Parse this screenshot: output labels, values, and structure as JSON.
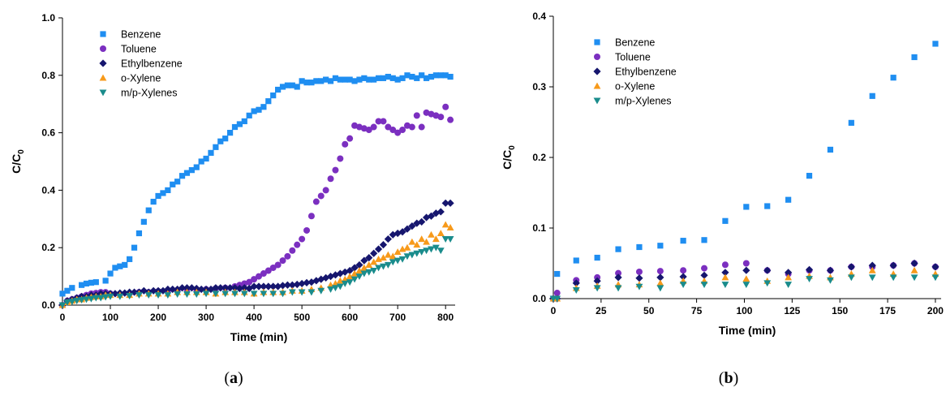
{
  "chart_data": [
    {
      "type": "scatter",
      "panel_label": "(a)",
      "xlabel": "Time (min)",
      "ylabel": "C/C",
      "ylabel_sub": "0",
      "xlim": [
        0,
        820
      ],
      "ylim": [
        0,
        1.0
      ],
      "xticks": [
        0,
        100,
        200,
        300,
        400,
        500,
        600,
        700,
        800
      ],
      "yticks": [
        0.0,
        0.2,
        0.4,
        0.6,
        0.8,
        1.0
      ],
      "yticks_labels": [
        "0.0",
        "0.2",
        "0.4",
        "0.6",
        "0.8",
        "1.0"
      ],
      "grid": false,
      "legend_position": "top-left",
      "series": [
        {
          "name": "Benzene",
          "color": "#1f8ef1",
          "marker": "square",
          "x": [
            0,
            10,
            20,
            40,
            50,
            60,
            70,
            90,
            100,
            110,
            120,
            130,
            140,
            150,
            160,
            170,
            180,
            190,
            200,
            210,
            220,
            230,
            240,
            250,
            260,
            270,
            280,
            290,
            300,
            310,
            320,
            330,
            340,
            350,
            360,
            370,
            380,
            390,
            400,
            410,
            420,
            430,
            440,
            450,
            460,
            470,
            480,
            490,
            500,
            510,
            520,
            530,
            540,
            550,
            560,
            570,
            580,
            590,
            600,
            610,
            620,
            630,
            640,
            650,
            660,
            670,
            680,
            690,
            700,
            710,
            720,
            730,
            740,
            750,
            760,
            770,
            780,
            790,
            800,
            810
          ],
          "y": [
            0.04,
            0.05,
            0.06,
            0.07,
            0.075,
            0.078,
            0.08,
            0.085,
            0.11,
            0.13,
            0.135,
            0.14,
            0.16,
            0.2,
            0.25,
            0.29,
            0.33,
            0.36,
            0.38,
            0.39,
            0.4,
            0.42,
            0.43,
            0.45,
            0.46,
            0.47,
            0.48,
            0.5,
            0.51,
            0.53,
            0.55,
            0.57,
            0.58,
            0.6,
            0.62,
            0.63,
            0.64,
            0.66,
            0.675,
            0.68,
            0.69,
            0.71,
            0.73,
            0.75,
            0.76,
            0.765,
            0.765,
            0.76,
            0.78,
            0.775,
            0.775,
            0.78,
            0.78,
            0.785,
            0.78,
            0.79,
            0.785,
            0.785,
            0.785,
            0.78,
            0.785,
            0.79,
            0.785,
            0.785,
            0.79,
            0.79,
            0.795,
            0.79,
            0.785,
            0.79,
            0.8,
            0.795,
            0.79,
            0.8,
            0.79,
            0.795,
            0.8,
            0.8,
            0.8,
            0.795
          ]
        },
        {
          "name": "Toluene",
          "color": "#7b2fc0",
          "marker": "circle",
          "x": [
            0,
            10,
            20,
            30,
            40,
            50,
            60,
            70,
            80,
            90,
            100,
            120,
            140,
            160,
            180,
            200,
            220,
            240,
            260,
            280,
            300,
            320,
            340,
            360,
            370,
            380,
            390,
            400,
            410,
            420,
            430,
            440,
            450,
            460,
            470,
            480,
            490,
            500,
            510,
            520,
            530,
            540,
            550,
            560,
            570,
            580,
            590,
            600,
            610,
            620,
            630,
            640,
            650,
            660,
            670,
            680,
            690,
            700,
            710,
            720,
            730,
            740,
            750,
            760,
            770,
            780,
            790,
            800,
            810
          ],
          "y": [
            0.0,
            0.015,
            0.02,
            0.025,
            0.03,
            0.035,
            0.04,
            0.042,
            0.045,
            0.045,
            0.04,
            0.038,
            0.04,
            0.045,
            0.045,
            0.048,
            0.05,
            0.052,
            0.055,
            0.055,
            0.055,
            0.058,
            0.06,
            0.065,
            0.07,
            0.075,
            0.08,
            0.09,
            0.1,
            0.11,
            0.12,
            0.13,
            0.14,
            0.155,
            0.17,
            0.19,
            0.21,
            0.23,
            0.26,
            0.31,
            0.36,
            0.38,
            0.4,
            0.44,
            0.47,
            0.51,
            0.56,
            0.58,
            0.625,
            0.62,
            0.615,
            0.61,
            0.62,
            0.64,
            0.64,
            0.62,
            0.61,
            0.6,
            0.61,
            0.625,
            0.62,
            0.66,
            0.62,
            0.67,
            0.665,
            0.66,
            0.655,
            0.69,
            0.645
          ]
        },
        {
          "name": "Ethylbenzene",
          "color": "#16166e",
          "marker": "diamond",
          "x": [
            0,
            10,
            20,
            30,
            40,
            50,
            60,
            70,
            80,
            90,
            100,
            110,
            120,
            130,
            140,
            150,
            160,
            170,
            180,
            190,
            200,
            210,
            220,
            230,
            240,
            250,
            260,
            270,
            280,
            290,
            300,
            310,
            320,
            330,
            340,
            350,
            360,
            370,
            380,
            390,
            400,
            410,
            420,
            430,
            440,
            450,
            460,
            470,
            480,
            490,
            500,
            510,
            520,
            530,
            540,
            550,
            560,
            570,
            580,
            590,
            600,
            610,
            620,
            630,
            640,
            650,
            660,
            670,
            680,
            690,
            700,
            710,
            720,
            730,
            740,
            750,
            760,
            770,
            780,
            790,
            800,
            810
          ],
          "y": [
            0.0,
            0.015,
            0.02,
            0.025,
            0.03,
            0.03,
            0.035,
            0.035,
            0.04,
            0.04,
            0.04,
            0.04,
            0.042,
            0.042,
            0.045,
            0.045,
            0.045,
            0.05,
            0.045,
            0.05,
            0.05,
            0.05,
            0.055,
            0.055,
            0.055,
            0.06,
            0.06,
            0.06,
            0.058,
            0.055,
            0.055,
            0.055,
            0.06,
            0.06,
            0.06,
            0.06,
            0.06,
            0.058,
            0.06,
            0.058,
            0.065,
            0.065,
            0.065,
            0.065,
            0.065,
            0.065,
            0.068,
            0.07,
            0.07,
            0.072,
            0.075,
            0.078,
            0.08,
            0.085,
            0.09,
            0.095,
            0.1,
            0.105,
            0.11,
            0.115,
            0.12,
            0.13,
            0.14,
            0.155,
            0.165,
            0.18,
            0.195,
            0.21,
            0.23,
            0.245,
            0.25,
            0.255,
            0.265,
            0.275,
            0.285,
            0.29,
            0.305,
            0.31,
            0.32,
            0.325,
            0.355,
            0.355
          ]
        },
        {
          "name": "o-Xylene",
          "color": "#f79a1b",
          "marker": "triangle-up",
          "x": [
            0,
            10,
            20,
            30,
            40,
            50,
            60,
            70,
            80,
            90,
            100,
            120,
            140,
            160,
            180,
            200,
            220,
            240,
            260,
            280,
            300,
            320,
            340,
            360,
            380,
            400,
            420,
            440,
            460,
            480,
            500,
            520,
            540,
            560,
            570,
            580,
            590,
            600,
            610,
            620,
            630,
            640,
            650,
            660,
            670,
            680,
            690,
            700,
            710,
            720,
            730,
            740,
            750,
            760,
            770,
            780,
            790,
            800,
            810
          ],
          "y": [
            0.0,
            0.01,
            0.015,
            0.02,
            0.02,
            0.025,
            0.028,
            0.03,
            0.03,
            0.035,
            0.035,
            0.035,
            0.035,
            0.04,
            0.04,
            0.04,
            0.04,
            0.045,
            0.045,
            0.045,
            0.045,
            0.04,
            0.045,
            0.045,
            0.045,
            0.04,
            0.045,
            0.045,
            0.045,
            0.05,
            0.05,
            0.055,
            0.06,
            0.07,
            0.075,
            0.085,
            0.09,
            0.1,
            0.11,
            0.12,
            0.13,
            0.14,
            0.15,
            0.16,
            0.165,
            0.175,
            0.17,
            0.185,
            0.195,
            0.2,
            0.22,
            0.21,
            0.23,
            0.22,
            0.245,
            0.23,
            0.25,
            0.28,
            0.27
          ]
        },
        {
          "name": "m/p-Xylenes",
          "color": "#1a8c8c",
          "marker": "triangle-down",
          "x": [
            0,
            10,
            20,
            30,
            40,
            50,
            60,
            70,
            80,
            90,
            100,
            120,
            140,
            160,
            180,
            200,
            220,
            240,
            260,
            280,
            300,
            320,
            340,
            360,
            380,
            400,
            420,
            440,
            460,
            480,
            500,
            520,
            540,
            560,
            570,
            580,
            590,
            600,
            610,
            620,
            630,
            640,
            650,
            660,
            670,
            680,
            690,
            700,
            710,
            720,
            730,
            740,
            750,
            760,
            770,
            780,
            790,
            800,
            810
          ],
          "y": [
            0.0,
            0.01,
            0.012,
            0.015,
            0.018,
            0.02,
            0.022,
            0.025,
            0.025,
            0.028,
            0.03,
            0.03,
            0.032,
            0.035,
            0.035,
            0.035,
            0.035,
            0.038,
            0.038,
            0.038,
            0.04,
            0.04,
            0.04,
            0.04,
            0.04,
            0.04,
            0.04,
            0.04,
            0.04,
            0.045,
            0.045,
            0.045,
            0.05,
            0.055,
            0.06,
            0.065,
            0.075,
            0.08,
            0.09,
            0.1,
            0.11,
            0.115,
            0.12,
            0.13,
            0.135,
            0.14,
            0.15,
            0.155,
            0.16,
            0.17,
            0.175,
            0.18,
            0.185,
            0.19,
            0.195,
            0.2,
            0.19,
            0.23,
            0.23
          ]
        }
      ]
    },
    {
      "type": "scatter",
      "panel_label": "(b)",
      "xlabel": "Time (min)",
      "ylabel": "C/C",
      "ylabel_sub": "0",
      "xlim": [
        0,
        203
      ],
      "ylim": [
        0,
        0.4
      ],
      "xticks": [
        0,
        25,
        50,
        75,
        100,
        125,
        150,
        175,
        200
      ],
      "yticks": [
        0.0,
        0.1,
        0.2,
        0.3,
        0.4
      ],
      "yticks_labels": [
        "0.0",
        "0.1",
        "0.2",
        "0.3",
        "0.4"
      ],
      "grid": false,
      "legend_position": "top-left",
      "series": [
        {
          "name": "Benzene",
          "color": "#1f8ef1",
          "marker": "square",
          "x": [
            0,
            2,
            12,
            23,
            34,
            45,
            56,
            68,
            79,
            90,
            101,
            112,
            123,
            134,
            145,
            156,
            167,
            178,
            189,
            200
          ],
          "y": [
            0.0,
            0.035,
            0.054,
            0.058,
            0.07,
            0.073,
            0.075,
            0.082,
            0.083,
            0.11,
            0.13,
            0.131,
            0.14,
            0.174,
            0.211,
            0.249,
            0.287,
            0.313,
            0.342,
            0.361
          ]
        },
        {
          "name": "Toluene",
          "color": "#7b2fc0",
          "marker": "circle",
          "x": [
            0,
            2,
            12,
            23,
            34,
            45,
            56,
            68,
            79,
            90,
            101,
            112,
            123,
            134,
            145,
            156,
            167,
            178,
            189,
            200
          ],
          "y": [
            0.0,
            0.008,
            0.026,
            0.03,
            0.036,
            0.038,
            0.039,
            0.04,
            0.043,
            0.048,
            0.05,
            0.04,
            0.035,
            0.04,
            0.04,
            0.045,
            0.045,
            0.047,
            0.05,
            0.045
          ]
        },
        {
          "name": "Ethylbenzene",
          "color": "#16166e",
          "marker": "diamond",
          "x": [
            0,
            2,
            12,
            23,
            34,
            45,
            56,
            68,
            79,
            90,
            101,
            112,
            123,
            134,
            145,
            156,
            167,
            178,
            189,
            200
          ],
          "y": [
            0.0,
            0.0,
            0.022,
            0.025,
            0.03,
            0.029,
            0.03,
            0.031,
            0.033,
            0.037,
            0.04,
            0.04,
            0.037,
            0.041,
            0.04,
            0.045,
            0.047,
            0.047,
            0.05,
            0.045
          ]
        },
        {
          "name": "o-Xylene",
          "color": "#f79a1b",
          "marker": "triangle-up",
          "x": [
            0,
            2,
            12,
            23,
            34,
            45,
            56,
            68,
            79,
            90,
            101,
            112,
            123,
            134,
            145,
            156,
            167,
            178,
            189,
            200
          ],
          "y": [
            0.0,
            0.0,
            0.015,
            0.018,
            0.02,
            0.02,
            0.022,
            0.025,
            0.025,
            0.03,
            0.028,
            0.025,
            0.03,
            0.032,
            0.03,
            0.035,
            0.04,
            0.035,
            0.04,
            0.035
          ]
        },
        {
          "name": "m/p-Xylenes",
          "color": "#1a8c8c",
          "marker": "triangle-down",
          "x": [
            0,
            2,
            12,
            23,
            34,
            45,
            56,
            68,
            79,
            90,
            101,
            112,
            123,
            134,
            145,
            156,
            167,
            178,
            189,
            200
          ],
          "y": [
            0.0,
            0.0,
            0.012,
            0.015,
            0.015,
            0.017,
            0.015,
            0.02,
            0.02,
            0.02,
            0.02,
            0.022,
            0.02,
            0.028,
            0.026,
            0.03,
            0.03,
            0.03,
            0.03,
            0.03
          ]
        }
      ]
    }
  ]
}
